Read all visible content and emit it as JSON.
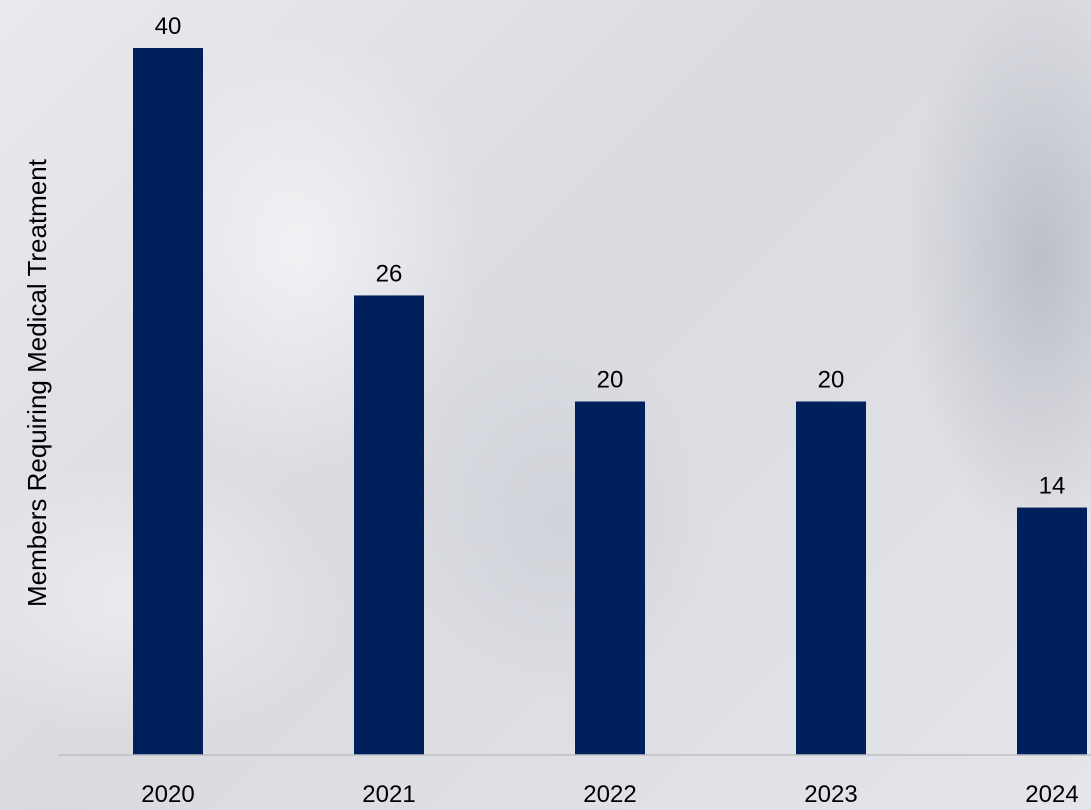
{
  "chart_data": {
    "type": "bar",
    "categories": [
      "2020",
      "2021",
      "2022",
      "2023",
      "2024"
    ],
    "values": [
      40,
      26,
      20,
      20,
      14
    ],
    "title": "",
    "xlabel": "",
    "ylabel": "Members Requiring Medical Treatment",
    "ylim": [
      0,
      40
    ],
    "grid": false,
    "bar_color": "#00205b",
    "axis_color": "#bfbfbf"
  }
}
